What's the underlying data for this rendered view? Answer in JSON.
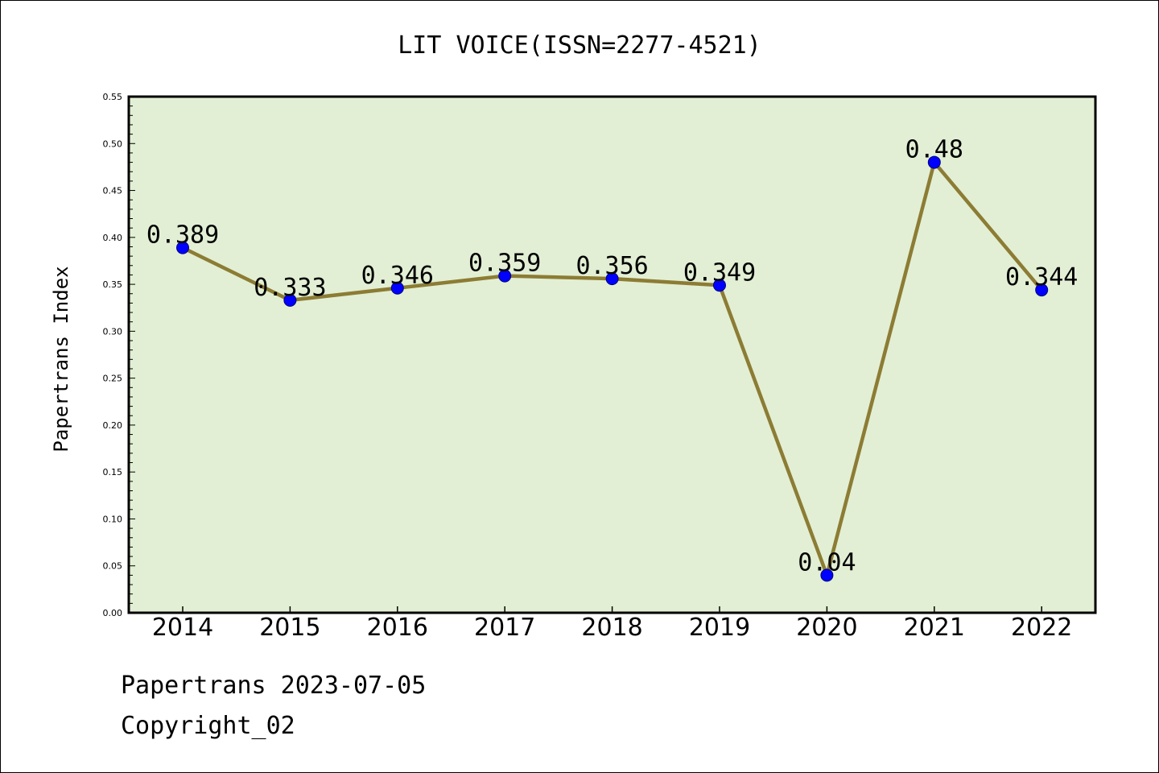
{
  "chart_data": {
    "type": "line",
    "title": "LIT VOICE(ISSN=2277-4521)",
    "xlabel": "",
    "ylabel": "Papertrans Index",
    "categories": [
      "2014",
      "2015",
      "2016",
      "2017",
      "2018",
      "2019",
      "2020",
      "2021",
      "2022"
    ],
    "values": [
      0.389,
      0.333,
      0.346,
      0.359,
      0.356,
      0.349,
      0.04,
      0.48,
      0.344
    ],
    "data_labels": [
      "0.389",
      "0.333",
      "0.346",
      "0.359",
      "0.356",
      "0.349",
      "0.04",
      "0.48",
      "0.344"
    ],
    "ylim": [
      0,
      0.55
    ],
    "yticks": [
      "0.00",
      "0.05",
      "0.10",
      "0.15",
      "0.20",
      "0.25",
      "0.30",
      "0.35",
      "0.40",
      "0.45",
      "0.50",
      "0.55"
    ],
    "grid": false,
    "legend": "none",
    "colors": {
      "plot_background": "#e2efd4",
      "line": "#8c7c34",
      "marker": "#0000ff",
      "marker_edge": "#00007a",
      "axes": "#000000"
    }
  },
  "footer": {
    "line1": "Papertrans 2023-07-05",
    "line2": "Copyright_02"
  }
}
